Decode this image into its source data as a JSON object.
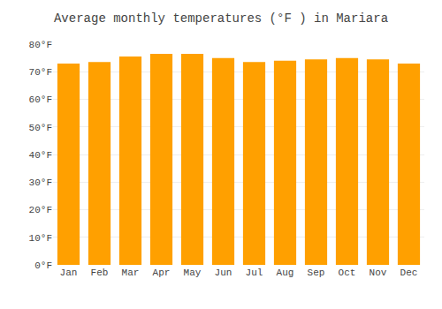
{
  "chart_data": {
    "type": "bar",
    "title": "Average monthly temperatures (°F ) in Mariara",
    "categories": [
      "Jan",
      "Feb",
      "Mar",
      "Apr",
      "May",
      "Jun",
      "Jul",
      "Aug",
      "Sep",
      "Oct",
      "Nov",
      "Dec"
    ],
    "values": [
      73,
      73.5,
      75.5,
      76.5,
      76.5,
      75,
      73.5,
      74,
      74.5,
      75,
      74.5,
      73
    ],
    "color": "#FFA000",
    "ylim": [
      0,
      80
    ],
    "yticks": [
      {
        "value": 0,
        "label": "0°F"
      },
      {
        "value": 10,
        "label": "10°F"
      },
      {
        "value": 20,
        "label": "20°F"
      },
      {
        "value": 30,
        "label": "30°F"
      },
      {
        "value": 40,
        "label": "40°F"
      },
      {
        "value": 50,
        "label": "50°F"
      },
      {
        "value": 60,
        "label": "60°F"
      },
      {
        "value": 70,
        "label": "70°F"
      },
      {
        "value": 80,
        "label": "80°F"
      }
    ],
    "grid": true
  }
}
